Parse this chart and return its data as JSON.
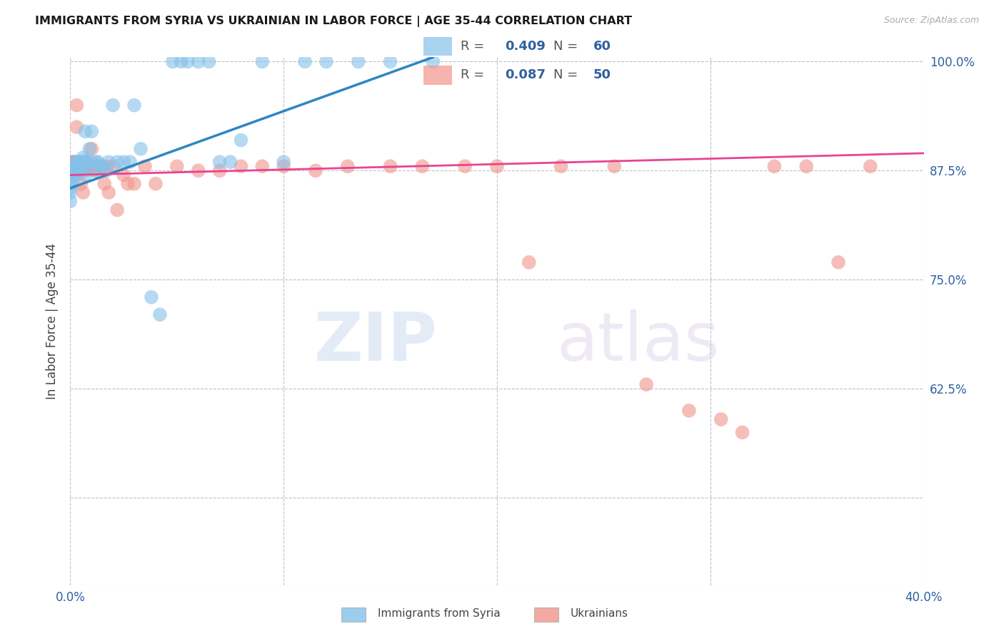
{
  "title": "IMMIGRANTS FROM SYRIA VS UKRAINIAN IN LABOR FORCE | AGE 35-44 CORRELATION CHART",
  "source": "Source: ZipAtlas.com",
  "ylabel": "In Labor Force | Age 35-44",
  "xlim": [
    0.0,
    0.4
  ],
  "ylim": [
    0.4,
    1.005
  ],
  "color_syria": "#85C1E9",
  "color_ukraine": "#F1948A",
  "color_syria_line": "#2E86C1",
  "color_ukraine_line": "#E84393",
  "watermark_zip": "ZIP",
  "watermark_atlas": "atlas",
  "syria_x": [
    0.0,
    0.0,
    0.0,
    0.0,
    0.0,
    0.001,
    0.001,
    0.001,
    0.001,
    0.002,
    0.002,
    0.002,
    0.003,
    0.003,
    0.003,
    0.003,
    0.004,
    0.004,
    0.005,
    0.005,
    0.005,
    0.006,
    0.006,
    0.007,
    0.007,
    0.007,
    0.008,
    0.009,
    0.01,
    0.01,
    0.011,
    0.012,
    0.013,
    0.014,
    0.015,
    0.017,
    0.018,
    0.02,
    0.022,
    0.025,
    0.028,
    0.03,
    0.033,
    0.038,
    0.042,
    0.048,
    0.052,
    0.055,
    0.06,
    0.065,
    0.07,
    0.075,
    0.08,
    0.09,
    0.1,
    0.11,
    0.12,
    0.135,
    0.15,
    0.17
  ],
  "syria_y": [
    0.87,
    0.86,
    0.855,
    0.85,
    0.84,
    0.88,
    0.875,
    0.87,
    0.86,
    0.885,
    0.88,
    0.87,
    0.885,
    0.88,
    0.875,
    0.87,
    0.885,
    0.88,
    0.885,
    0.88,
    0.875,
    0.89,
    0.885,
    0.92,
    0.885,
    0.87,
    0.885,
    0.9,
    0.92,
    0.885,
    0.875,
    0.885,
    0.885,
    0.88,
    0.88,
    0.875,
    0.885,
    0.95,
    0.885,
    0.885,
    0.885,
    0.95,
    0.9,
    0.73,
    0.71,
    1.0,
    1.0,
    1.0,
    1.0,
    1.0,
    0.885,
    0.885,
    0.91,
    1.0,
    0.885,
    1.0,
    1.0,
    1.0,
    1.0,
    1.0
  ],
  "ukraine_x": [
    0.0,
    0.0,
    0.001,
    0.002,
    0.003,
    0.003,
    0.005,
    0.005,
    0.006,
    0.007,
    0.007,
    0.008,
    0.01,
    0.01,
    0.012,
    0.013,
    0.015,
    0.016,
    0.017,
    0.018,
    0.02,
    0.022,
    0.025,
    0.027,
    0.03,
    0.035,
    0.04,
    0.05,
    0.06,
    0.07,
    0.08,
    0.09,
    0.1,
    0.115,
    0.13,
    0.15,
    0.165,
    0.185,
    0.2,
    0.215,
    0.23,
    0.255,
    0.27,
    0.29,
    0.305,
    0.315,
    0.33,
    0.345,
    0.36,
    0.375
  ],
  "ukraine_y": [
    0.885,
    0.875,
    0.885,
    0.885,
    0.95,
    0.925,
    0.875,
    0.86,
    0.85,
    0.885,
    0.875,
    0.88,
    0.9,
    0.88,
    0.875,
    0.88,
    0.88,
    0.86,
    0.88,
    0.85,
    0.88,
    0.83,
    0.87,
    0.86,
    0.86,
    0.88,
    0.86,
    0.88,
    0.875,
    0.875,
    0.88,
    0.88,
    0.88,
    0.875,
    0.88,
    0.88,
    0.88,
    0.88,
    0.88,
    0.77,
    0.88,
    0.88,
    0.63,
    0.6,
    0.59,
    0.575,
    0.88,
    0.88,
    0.77,
    0.88
  ],
  "syria_trend": [
    0.0,
    0.17
  ],
  "syria_trend_y": [
    0.855,
    1.005
  ],
  "ukraine_trend": [
    0.0,
    0.4
  ],
  "ukraine_trend_y": [
    0.87,
    0.895
  ]
}
